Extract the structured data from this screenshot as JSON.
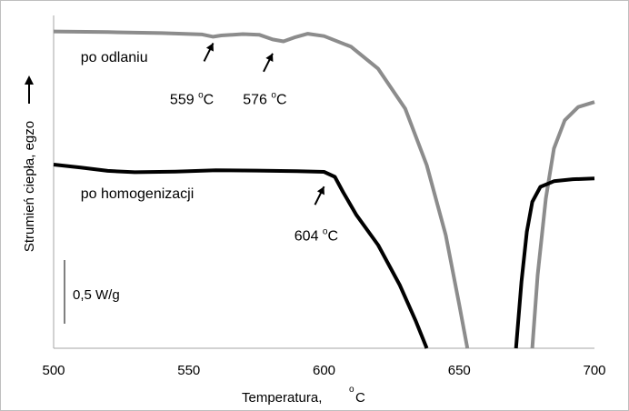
{
  "chart_data": {
    "type": "line",
    "title": "",
    "xlabel": "Temperatura,",
    "xlabel_unit": "°C",
    "ylabel": "Strumień ciepła,  egzo",
    "xlim": [
      500,
      700
    ],
    "ylim": [
      0,
      100
    ],
    "x_ticks": [
      "500",
      "550",
      "600",
      "650",
      "700"
    ],
    "grid": false,
    "scale_bar": {
      "label": "0,5 W/g",
      "height_units": 20
    },
    "series": [
      {
        "name": "po odlaniu",
        "color": "#8c8c8c",
        "segments": [
          [
            [
              500,
              95.2
            ],
            [
              520,
              95.0
            ],
            [
              540,
              94.7
            ],
            [
              555,
              94.3
            ],
            [
              559,
              93.6
            ],
            [
              562,
              94.0
            ],
            [
              570,
              94.4
            ],
            [
              576,
              94.2
            ],
            [
              581,
              92.8
            ],
            [
              585,
              92.2
            ],
            [
              589,
              93.4
            ],
            [
              594,
              94.5
            ],
            [
              600,
              93.8
            ],
            [
              610,
              90.6
            ],
            [
              620,
              84.0
            ],
            [
              630,
              72.0
            ],
            [
              638,
              55.0
            ],
            [
              645,
              34.0
            ],
            [
              650,
              13.0
            ],
            [
              653,
              0.0
            ]
          ],
          [
            [
              677,
              0.0
            ],
            [
              679,
              22.0
            ],
            [
              682,
              45.0
            ],
            [
              685,
              60.0
            ],
            [
              689,
              68.5
            ],
            [
              694,
              72.5
            ],
            [
              700,
              74.0
            ]
          ]
        ]
      },
      {
        "name": "po homogenizacji",
        "color": "#000000",
        "segments": [
          [
            [
              500,
              55.2
            ],
            [
              510,
              54.3
            ],
            [
              520,
              53.3
            ],
            [
              530,
              52.9
            ],
            [
              545,
              53.1
            ],
            [
              560,
              53.5
            ],
            [
              575,
              53.4
            ],
            [
              590,
              53.2
            ],
            [
              600,
              53.0
            ],
            [
              604,
              51.5
            ],
            [
              607,
              47.0
            ],
            [
              612,
              40.0
            ],
            [
              620,
              31.0
            ],
            [
              628,
              19.0
            ],
            [
              634,
              8.0
            ],
            [
              638,
              0.0
            ]
          ],
          [
            [
              671,
              0.0
            ],
            [
              673,
              20.0
            ],
            [
              675,
              35.0
            ],
            [
              677,
              44.0
            ],
            [
              680,
              48.5
            ],
            [
              685,
              50.2
            ],
            [
              692,
              50.8
            ],
            [
              700,
              51.0
            ]
          ]
        ]
      }
    ],
    "annotations": [
      {
        "label": "po odlaniu",
        "x": 510,
        "y": 87.5
      },
      {
        "label": "po homogenizacji",
        "x": 510,
        "y": 46.5
      },
      {
        "label": "559 °C",
        "x": 559,
        "y": 93.6,
        "text_x": 543,
        "text_y": 75
      },
      {
        "label": "576 °C",
        "x": 581,
        "y": 90.5,
        "text_x": 570,
        "text_y": 75
      },
      {
        "label": "604 °C",
        "x": 600,
        "y": 50.5,
        "text_x": 589,
        "text_y": 34
      }
    ]
  }
}
